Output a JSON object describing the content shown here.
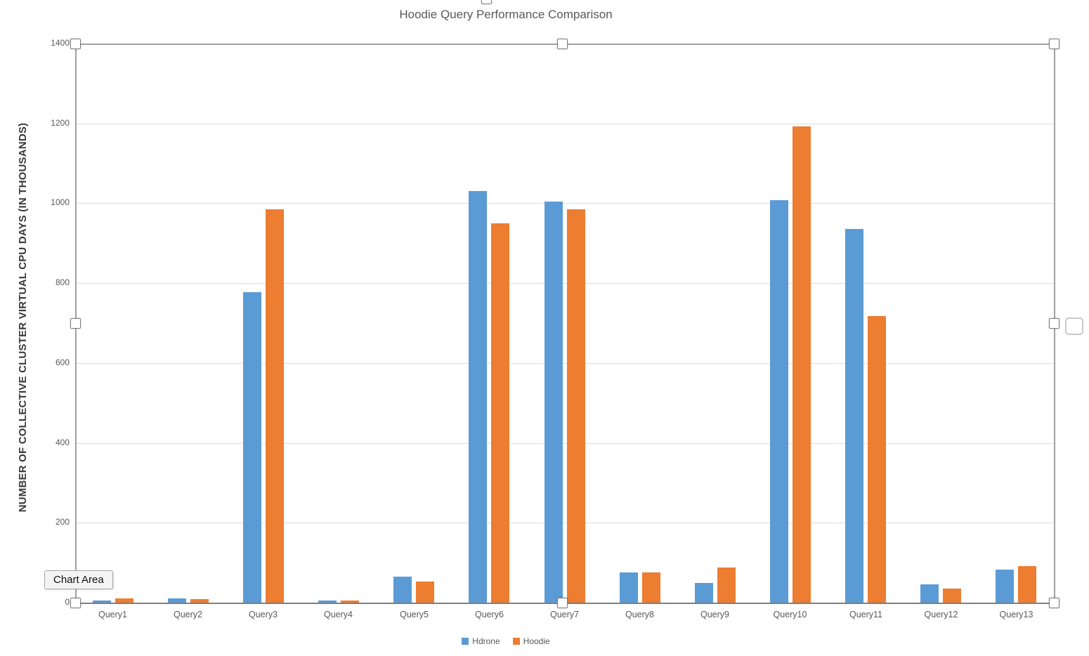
{
  "tooltip": {
    "label": "Chart Area"
  },
  "colors": {
    "hdrone": "#5B9BD5",
    "hoodie": "#ED7D31",
    "gridline": "#DEDEDE",
    "axis_line": "#7F7F7F",
    "selection_line": "#A0A0A0",
    "text": "#595959"
  },
  "chart_data": {
    "type": "bar",
    "title": "Hoodie Query Performance Comparison",
    "xlabel": "",
    "ylabel": "NUMBER OF COLLECTIVE CLUSTER VIRTUAL CPU DAYS (IN THOUSANDS)",
    "categories": [
      "Query1",
      "Query2",
      "Query3",
      "Query4",
      "Query5",
      "Query6",
      "Query7",
      "Query8",
      "Query9",
      "Query10",
      "Query11",
      "Query12",
      "Query13"
    ],
    "series": [
      {
        "name": "Hdrone",
        "color": "#5B9BD5",
        "values": [
          5,
          10,
          777,
          5,
          65,
          1030,
          1005,
          75,
          50,
          1007,
          935,
          45,
          82
        ]
      },
      {
        "name": "Hoodie",
        "color": "#ED7D31",
        "values": [
          10,
          9,
          985,
          5,
          53,
          950,
          985,
          75,
          88,
          1193,
          718,
          35,
          91
        ]
      }
    ],
    "ylim": [
      0,
      1400
    ],
    "yticks": [
      0,
      200,
      400,
      600,
      800,
      1000,
      1200,
      1400
    ],
    "grid": true,
    "legend_position": "bottom"
  },
  "selection": {
    "state": "plot-area-selected",
    "handle_count": 8
  }
}
